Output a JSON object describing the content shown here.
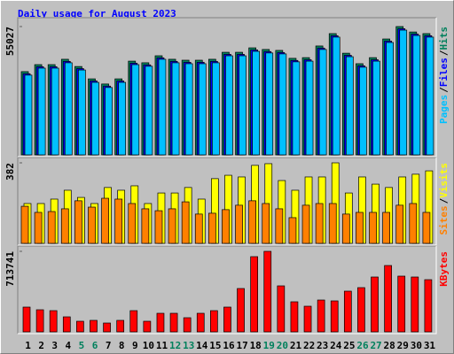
{
  "chart_data": [
    {
      "type": "bar",
      "title": "Daily usage for August 2023",
      "legend_separator": "/",
      "ylim": [
        0,
        55027
      ],
      "yticks": [
        55027
      ],
      "series": [
        {
          "name": "Hits",
          "color": "#00805c",
          "values": [
            35700,
            38700,
            38700,
            41000,
            37900,
            32600,
            30400,
            32600,
            40200,
            39500,
            42500,
            41000,
            40600,
            40600,
            41000,
            44000,
            44000,
            45900,
            45200,
            44800,
            41400,
            41700,
            46700,
            52000,
            43600,
            39100,
            41700,
            49700,
            55027,
            52700,
            52000
          ]
        },
        {
          "name": "Files",
          "color": "#0000ff",
          "values": [
            34800,
            37800,
            37800,
            40100,
            37000,
            31700,
            29500,
            31700,
            39300,
            38600,
            41600,
            40100,
            39700,
            39700,
            40100,
            43100,
            43100,
            45000,
            44300,
            43900,
            40500,
            40800,
            45800,
            51100,
            42700,
            38200,
            40800,
            48800,
            54100,
            51800,
            51100
          ]
        },
        {
          "name": "Pages",
          "color": "#00c0ff",
          "values": [
            34200,
            37200,
            37200,
            39500,
            36400,
            31100,
            28900,
            31100,
            38700,
            38000,
            41000,
            39500,
            39100,
            39100,
            39500,
            42500,
            42500,
            44400,
            43700,
            43300,
            39900,
            40200,
            45200,
            50500,
            42100,
            37600,
            40200,
            48200,
            53500,
            51200,
            50500
          ]
        }
      ]
    },
    {
      "type": "bar",
      "ylim": [
        0,
        382
      ],
      "yticks": [
        382
      ],
      "series": [
        {
          "name": "Visits",
          "color": "#ffff00",
          "values": [
            189,
            189,
            210,
            252,
            218,
            189,
            265,
            252,
            273,
            189,
            239,
            239,
            265,
            210,
            307,
            323,
            315,
            370,
            378,
            298,
            252,
            315,
            315,
            382,
            239,
            315,
            281,
            265,
            315,
            328,
            344
          ]
        },
        {
          "name": "Sites",
          "color": "#ff8000",
          "values": [
            176,
            147,
            151,
            164,
            202,
            172,
            214,
            210,
            189,
            164,
            155,
            164,
            197,
            139,
            143,
            160,
            181,
            202,
            189,
            164,
            122,
            181,
            189,
            189,
            139,
            147,
            147,
            147,
            181,
            189,
            147
          ]
        }
      ]
    },
    {
      "type": "bar",
      "ylim": [
        0,
        713741
      ],
      "yticks": [
        713741
      ],
      "categories": [
        "1",
        "2",
        "3",
        "4",
        "5",
        "6",
        "7",
        "8",
        "9",
        "10",
        "11",
        "12",
        "13",
        "14",
        "15",
        "16",
        "17",
        "18",
        "19",
        "20",
        "21",
        "22",
        "23",
        "24",
        "25",
        "26",
        "27",
        "28",
        "29",
        "30",
        "31"
      ],
      "category_colors": [
        "#000000",
        "#000000",
        "#000000",
        "#000000",
        "#00805c",
        "#00805c",
        "#000000",
        "#000000",
        "#000000",
        "#000000",
        "#000000",
        "#00805c",
        "#00805c",
        "#000000",
        "#000000",
        "#000000",
        "#000000",
        "#000000",
        "#00805c",
        "#00805c",
        "#000000",
        "#000000",
        "#000000",
        "#000000",
        "#000000",
        "#00805c",
        "#00805c",
        "#000000",
        "#000000",
        "#000000",
        "#000000"
      ],
      "series": [
        {
          "name": "KBytes",
          "color": "#ff0000",
          "values": [
            219600,
            196100,
            188200,
            133300,
            94100,
            102000,
            78400,
            102000,
            188200,
            94100,
            164700,
            164700,
            125500,
            164700,
            188200,
            219600,
            384300,
            666700,
            713741,
            407800,
            266700,
            227400,
            282300,
            274500,
            360800,
            392200,
            486300,
            588200,
            494100,
            486300,
            462700
          ]
        }
      ]
    }
  ]
}
